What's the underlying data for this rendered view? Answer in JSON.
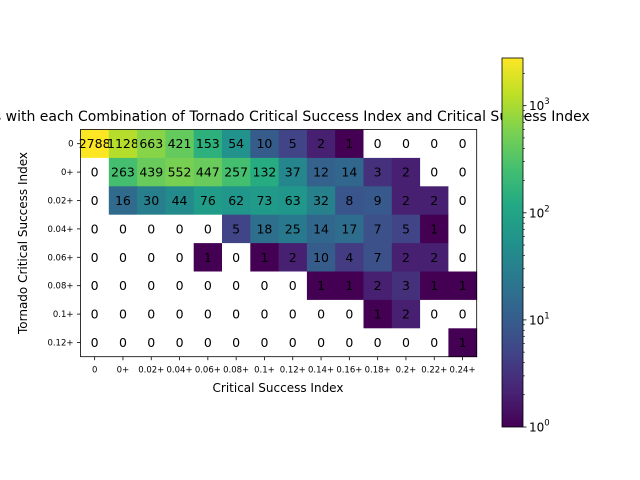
{
  "chart_data": {
    "type": "heatmap",
    "title": "Days with each Combination of Tornado Critical Success Index and Critical Success Index",
    "xlabel": "Critical Success Index",
    "ylabel": "Tornado Critical Success Index",
    "x_categories": [
      "0",
      "0+",
      "0.02+",
      "0.04+",
      "0.06+",
      "0.08+",
      "0.1+",
      "0.12+",
      "0.14+",
      "0.16+",
      "0.18+",
      "0.2+",
      "0.22+",
      "0.24+"
    ],
    "y_categories": [
      "0",
      "0+",
      "0.02+",
      "0.04+",
      "0.06+",
      "0.08+",
      "0.1+",
      "0.12+"
    ],
    "values": [
      [
        2788,
        1128,
        663,
        421,
        153,
        54,
        10,
        5,
        2,
        1,
        0,
        0,
        0,
        0
      ],
      [
        0,
        263,
        439,
        552,
        447,
        257,
        132,
        37,
        12,
        14,
        3,
        2,
        0,
        0
      ],
      [
        0,
        16,
        30,
        44,
        76,
        62,
        73,
        63,
        32,
        8,
        9,
        2,
        2,
        0
      ],
      [
        0,
        0,
        0,
        0,
        0,
        5,
        18,
        25,
        14,
        17,
        7,
        5,
        1,
        0
      ],
      [
        0,
        0,
        0,
        0,
        1,
        0,
        1,
        2,
        10,
        4,
        7,
        2,
        2,
        0
      ],
      [
        0,
        0,
        0,
        0,
        0,
        0,
        0,
        0,
        1,
        1,
        2,
        3,
        1,
        1
      ],
      [
        0,
        0,
        0,
        0,
        0,
        0,
        0,
        0,
        0,
        0,
        1,
        2,
        0,
        0
      ],
      [
        0,
        0,
        0,
        0,
        0,
        0,
        0,
        0,
        0,
        0,
        0,
        0,
        0,
        1
      ]
    ],
    "colorbar": {
      "scale": "log",
      "colormap": "viridis",
      "range": [
        1,
        2788
      ],
      "ticks": [
        {
          "value": 1,
          "base": "10",
          "exp": "0"
        },
        {
          "value": 10,
          "base": "10",
          "exp": "1"
        },
        {
          "value": 100,
          "base": "10",
          "exp": "2"
        },
        {
          "value": 1000,
          "base": "10",
          "exp": "3"
        }
      ]
    },
    "zero_cells": "white",
    "grid": false
  }
}
